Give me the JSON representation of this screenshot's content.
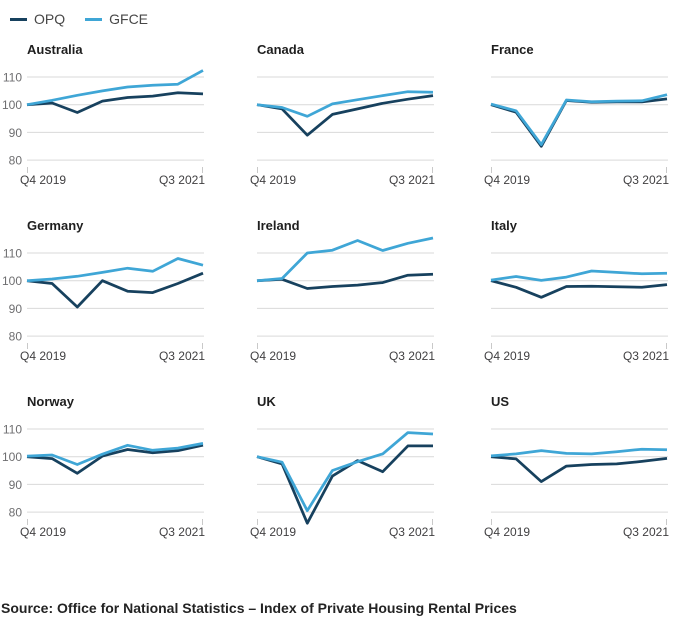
{
  "legend": {
    "series": [
      {
        "label": "OPQ",
        "color": "#17415e"
      },
      {
        "label": "GFCE",
        "color": "#3fa6d6"
      }
    ]
  },
  "axis": {
    "y_ticks": [
      110,
      100,
      90,
      80
    ],
    "x_first_label": "Q4 2019",
    "x_last_label": "Q3 2021"
  },
  "colors": {
    "grid": "#d9d9d9",
    "tick": "#c9c9c9",
    "y_label_text": "#6e6e70",
    "x_label_text": "#414042"
  },
  "source": "Source: Office for National Statistics – Index of Private Housing Rental Prices",
  "chart_data": [
    {
      "type": "line",
      "title": "Australia",
      "y_labels": true,
      "x": [
        "Q4 2019",
        "Q1 2020",
        "Q2 2020",
        "Q3 2020",
        "Q4 2020",
        "Q1 2021",
        "Q2 2021",
        "Q3 2021"
      ],
      "ylim": [
        75,
        116
      ],
      "yticks": [
        80,
        90,
        100,
        110
      ],
      "series": [
        {
          "name": "OPQ",
          "values": [
            100,
            100.6,
            97.2,
            101.3,
            102.6,
            103.1,
            104.3,
            103.9
          ]
        },
        {
          "name": "GFCE",
          "values": [
            100,
            101.6,
            103.4,
            105,
            106.4,
            107,
            107.4,
            112.4
          ]
        }
      ]
    },
    {
      "type": "line",
      "title": "Canada",
      "y_labels": false,
      "x": [
        "Q4 2019",
        "Q1 2020",
        "Q2 2020",
        "Q3 2020",
        "Q4 2020",
        "Q1 2021",
        "Q2 2021",
        "Q3 2021"
      ],
      "ylim": [
        75,
        116
      ],
      "yticks": [
        80,
        90,
        100,
        110
      ],
      "series": [
        {
          "name": "OPQ",
          "values": [
            100,
            98.5,
            89,
            96.5,
            98.5,
            100.5,
            102,
            103.3
          ]
        },
        {
          "name": "GFCE",
          "values": [
            100,
            99,
            95.8,
            100.3,
            101.8,
            103.3,
            104.7,
            104.5
          ]
        }
      ]
    },
    {
      "type": "line",
      "title": "France",
      "y_labels": false,
      "x": [
        "Q4 2019",
        "Q1 2020",
        "Q2 2020",
        "Q3 2020",
        "Q4 2020",
        "Q1 2021",
        "Q2 2021",
        "Q3 2021"
      ],
      "ylim": [
        75,
        116
      ],
      "yticks": [
        80,
        90,
        100,
        110
      ],
      "series": [
        {
          "name": "OPQ",
          "values": [
            100,
            97.3,
            85,
            101.5,
            100.9,
            101,
            101,
            102.1
          ]
        },
        {
          "name": "GFCE",
          "values": [
            100.2,
            97.8,
            85.6,
            101.7,
            101.1,
            101.3,
            101.4,
            103.6
          ]
        }
      ]
    },
    {
      "type": "line",
      "title": "Germany",
      "y_labels": true,
      "x": [
        "Q4 2019",
        "Q1 2020",
        "Q2 2020",
        "Q3 2020",
        "Q4 2020",
        "Q1 2021",
        "Q2 2021",
        "Q3 2021"
      ],
      "ylim": [
        75,
        116
      ],
      "yticks": [
        80,
        90,
        100,
        110
      ],
      "series": [
        {
          "name": "OPQ",
          "values": [
            100,
            99,
            90.5,
            100,
            96.2,
            95.7,
            99,
            102.7
          ]
        },
        {
          "name": "GFCE",
          "values": [
            100,
            100.6,
            101.6,
            103,
            104.5,
            103.4,
            108,
            105.6
          ]
        }
      ]
    },
    {
      "type": "line",
      "title": "Ireland",
      "y_labels": false,
      "x": [
        "Q4 2019",
        "Q1 2020",
        "Q2 2020",
        "Q3 2020",
        "Q4 2020",
        "Q1 2021",
        "Q2 2021",
        "Q3 2021"
      ],
      "ylim": [
        75,
        116
      ],
      "yticks": [
        80,
        90,
        100,
        110
      ],
      "series": [
        {
          "name": "OPQ",
          "values": [
            100,
            100.5,
            97.2,
            97.9,
            98.4,
            99.3,
            102,
            102.3
          ]
        },
        {
          "name": "GFCE",
          "values": [
            100,
            100.8,
            110,
            111,
            114.5,
            110.9,
            113.5,
            115.4
          ]
        }
      ]
    },
    {
      "type": "line",
      "title": "Italy",
      "y_labels": false,
      "x": [
        "Q4 2019",
        "Q1 2020",
        "Q2 2020",
        "Q3 2020",
        "Q4 2020",
        "Q1 2021",
        "Q2 2021",
        "Q3 2021"
      ],
      "ylim": [
        75,
        116
      ],
      "yticks": [
        80,
        90,
        100,
        110
      ],
      "series": [
        {
          "name": "OPQ",
          "values": [
            100,
            97.6,
            94,
            97.9,
            98,
            97.8,
            97.6,
            98.6
          ]
        },
        {
          "name": "GFCE",
          "values": [
            100.2,
            101.5,
            100.1,
            101.3,
            103.5,
            103,
            102.5,
            102.7
          ]
        }
      ]
    },
    {
      "type": "line",
      "title": "Norway",
      "y_labels": true,
      "x": [
        "Q4 2019",
        "Q1 2020",
        "Q2 2020",
        "Q3 2020",
        "Q4 2020",
        "Q1 2021",
        "Q2 2021",
        "Q3 2021"
      ],
      "ylim": [
        75,
        116
      ],
      "yticks": [
        80,
        90,
        100,
        110
      ],
      "series": [
        {
          "name": "OPQ",
          "values": [
            100,
            99.3,
            94,
            100.2,
            102.6,
            101.4,
            102.2,
            104.2
          ]
        },
        {
          "name": "GFCE",
          "values": [
            100.2,
            100.6,
            97.2,
            100.9,
            104.1,
            102.3,
            103.1,
            104.8
          ]
        }
      ]
    },
    {
      "type": "line",
      "title": "UK",
      "y_labels": false,
      "x": [
        "Q4 2019",
        "Q1 2020",
        "Q2 2020",
        "Q3 2020",
        "Q4 2020",
        "Q1 2021",
        "Q2 2021",
        "Q3 2021"
      ],
      "ylim": [
        75,
        116
      ],
      "yticks": [
        80,
        90,
        100,
        110
      ],
      "series": [
        {
          "name": "OPQ",
          "values": [
            100,
            97.4,
            76,
            93,
            98.6,
            94.6,
            103.9,
            103.9
          ]
        },
        {
          "name": "GFCE",
          "values": [
            100,
            98,
            80.5,
            95,
            98.2,
            101,
            108.7,
            108.2
          ]
        }
      ]
    },
    {
      "type": "line",
      "title": "US",
      "y_labels": false,
      "x": [
        "Q4 2019",
        "Q1 2020",
        "Q2 2020",
        "Q3 2020",
        "Q4 2020",
        "Q1 2021",
        "Q2 2021",
        "Q3 2021"
      ],
      "ylim": [
        75,
        116
      ],
      "yticks": [
        80,
        90,
        100,
        110
      ],
      "series": [
        {
          "name": "OPQ",
          "values": [
            100,
            99.2,
            91,
            96.6,
            97.2,
            97.4,
            98.3,
            99.4
          ]
        },
        {
          "name": "GFCE",
          "values": [
            100.3,
            101,
            102.2,
            101.2,
            101,
            101.8,
            102.7,
            102.5
          ]
        }
      ]
    }
  ]
}
